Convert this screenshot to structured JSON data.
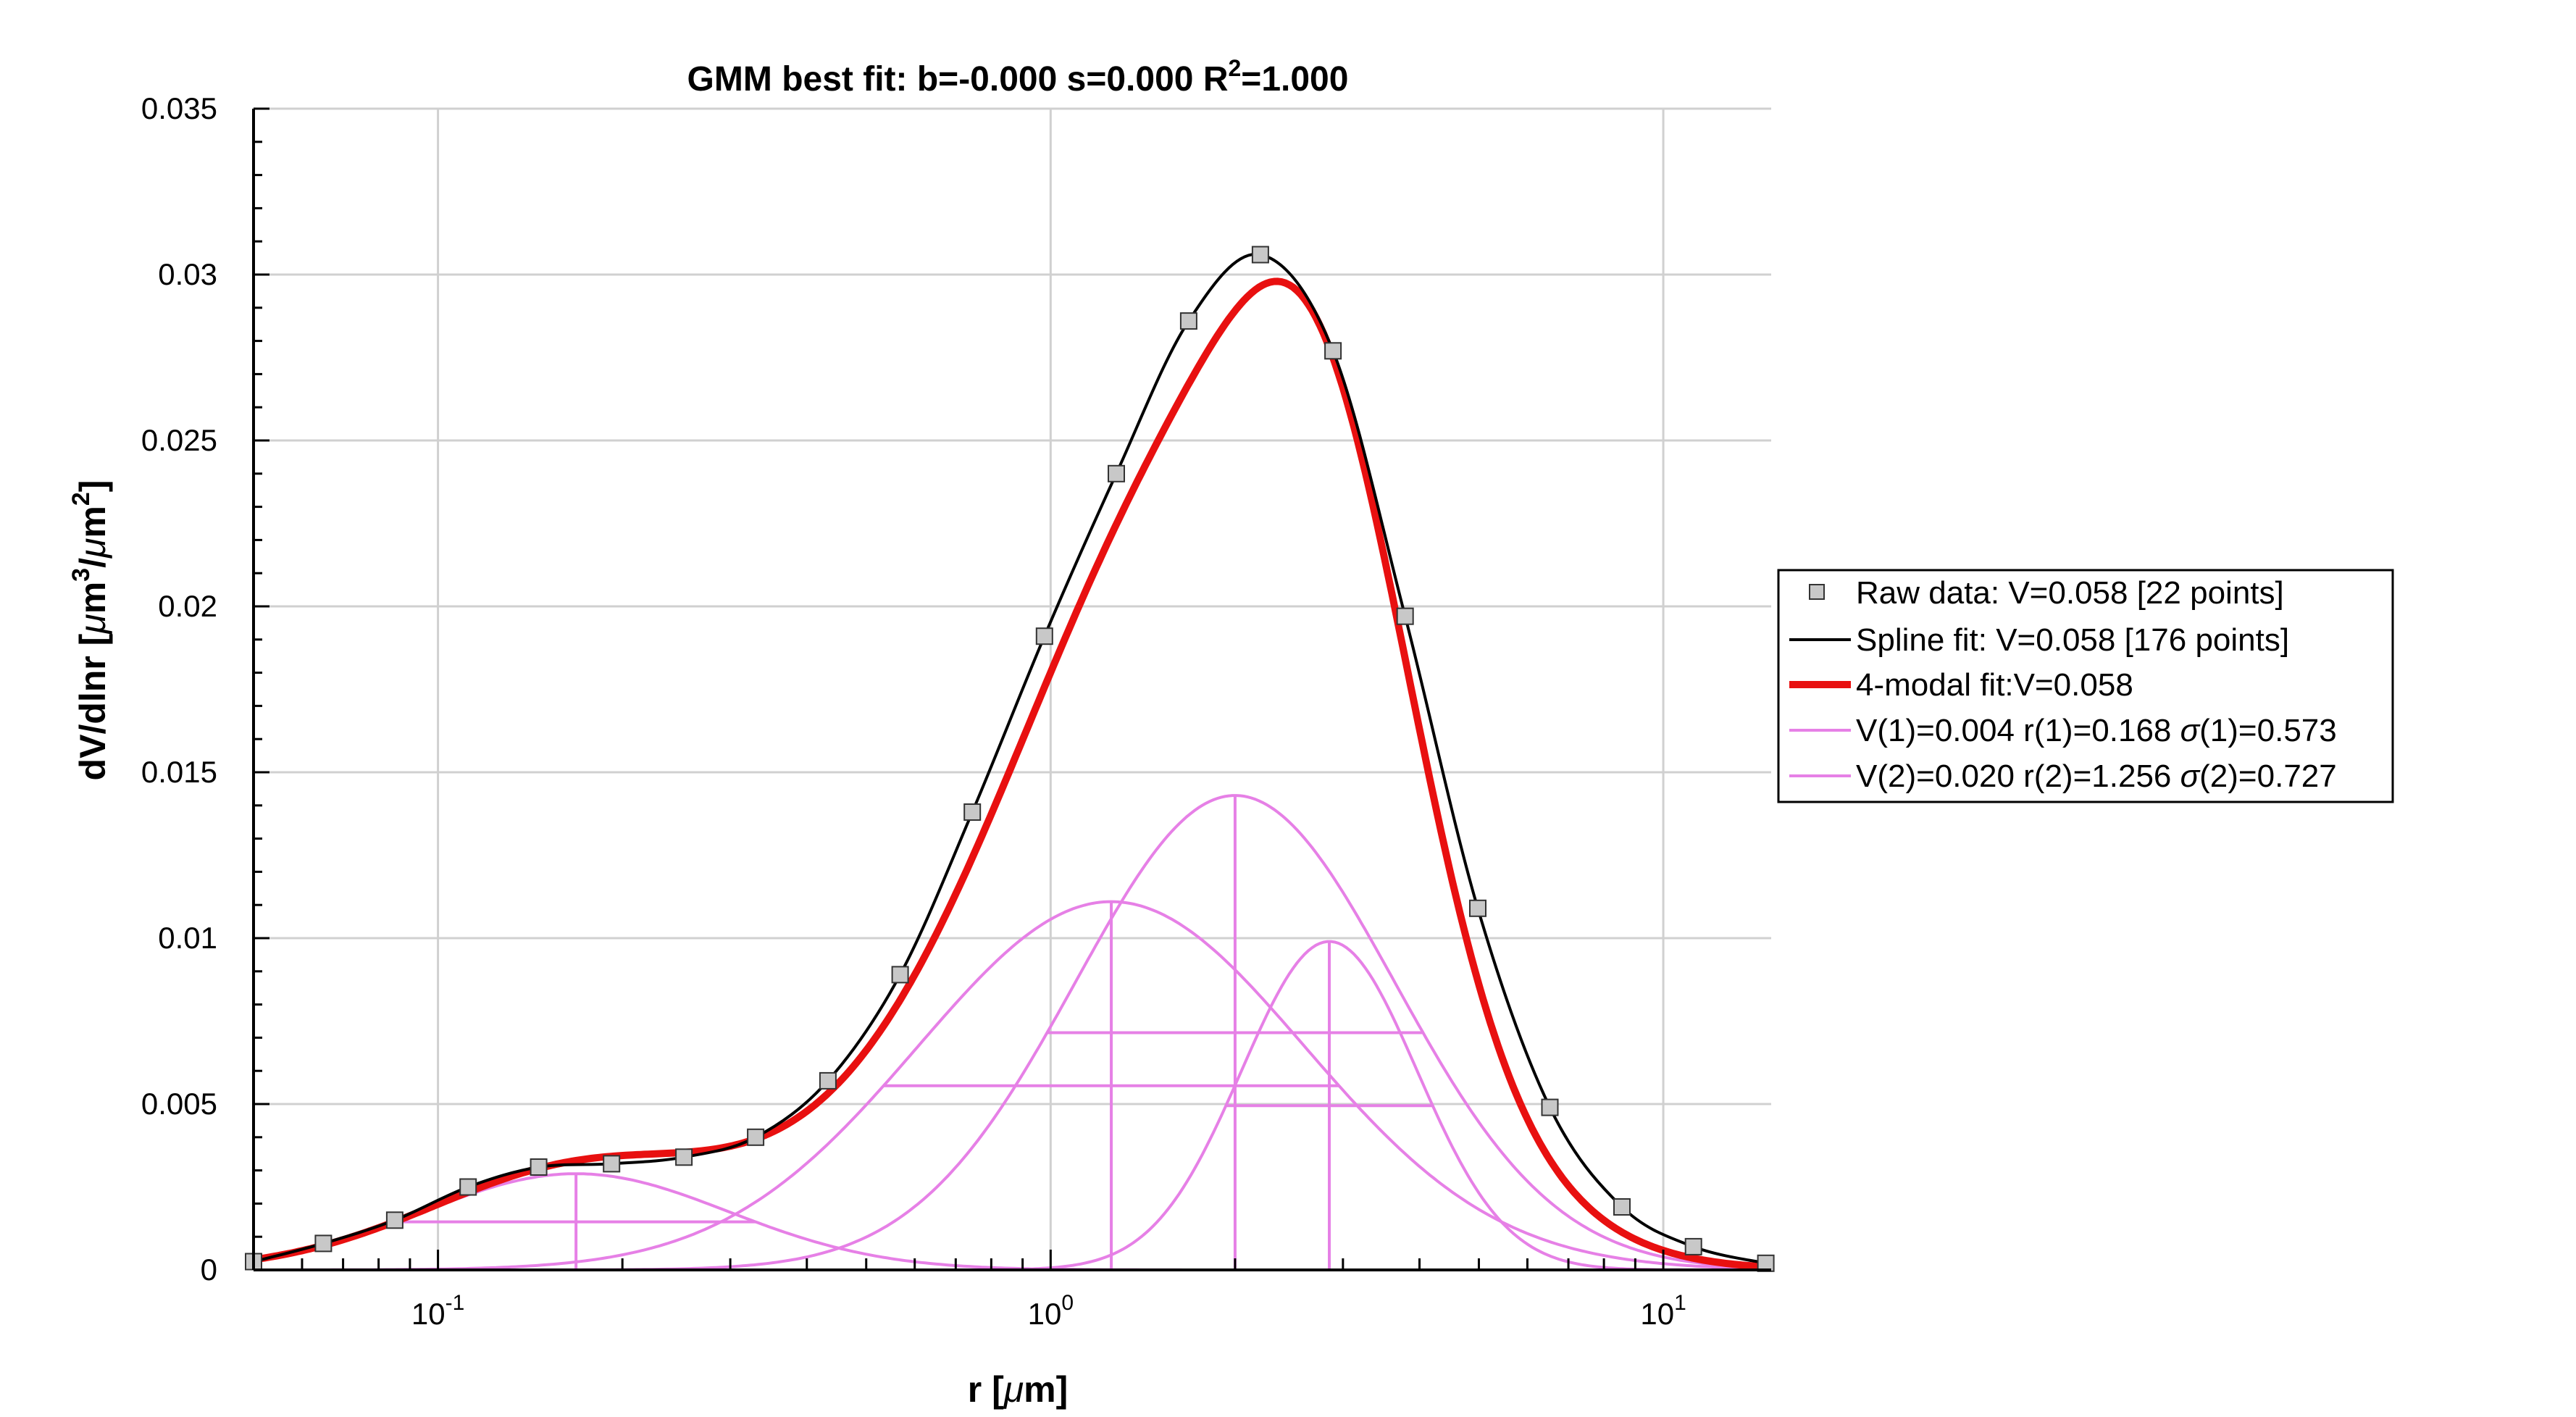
{
  "chart_data": {
    "type": "line",
    "title": "GMM best fit: b=-0.000 s=0.000 R",
    "title_sup": "2",
    "title_tail": "=1.000",
    "xlabel_pre": "r [",
    "xlabel_mu": "μ",
    "xlabel_post": "m]",
    "ylabel_pre": "dV/dlnr [",
    "ylabel_mu1": "μ",
    "ylabel_m1": "m",
    "ylabel_sup1": "3",
    "ylabel_slash": "/",
    "ylabel_mu2": "μ",
    "ylabel_m2": "m",
    "ylabel_sup2": "2",
    "ylabel_close": "]",
    "xscale": "log",
    "xlim": [
      0.05,
      15
    ],
    "ylim": [
      0,
      0.035
    ],
    "grid": true,
    "legend_placement": "right",
    "x_ticks": [
      {
        "value": 0.1,
        "base": "10",
        "exp": "-1"
      },
      {
        "value": 1,
        "base": "10",
        "exp": "0"
      },
      {
        "value": 10,
        "base": "10",
        "exp": "1"
      }
    ],
    "y_ticks": [
      {
        "value": 0,
        "label": "0"
      },
      {
        "value": 0.005,
        "label": "0.005"
      },
      {
        "value": 0.01,
        "label": "0.01"
      },
      {
        "value": 0.015,
        "label": "0.015"
      },
      {
        "value": 0.02,
        "label": "0.02"
      },
      {
        "value": 0.025,
        "label": "0.025"
      },
      {
        "value": 0.03,
        "label": "0.03"
      },
      {
        "value": 0.035,
        "label": "0.035"
      }
    ],
    "raw_data": {
      "name": "Raw data: V=0.058 [22 points]",
      "x": [
        0.05,
        0.065,
        0.085,
        0.112,
        0.146,
        0.192,
        0.252,
        0.33,
        0.433,
        0.568,
        0.745,
        0.977,
        1.28,
        1.68,
        2.2,
        2.89,
        3.79,
        4.98,
        6.53,
        8.56,
        11.2,
        14.7
      ],
      "y": [
        0.00025,
        0.0008,
        0.0015,
        0.0025,
        0.0031,
        0.0032,
        0.0034,
        0.004,
        0.0057,
        0.0089,
        0.0138,
        0.0191,
        0.024,
        0.0286,
        0.0306,
        0.0277,
        0.0197,
        0.0109,
        0.0049,
        0.0019,
        0.0007,
        0.0002
      ]
    },
    "spline_fit": {
      "name": "Spline fit: V=0.058 [176 points]",
      "color": "#000000"
    },
    "multimodal_fit": {
      "name": "4-modal fit:V=0.058",
      "color": "#e81010"
    },
    "mode_color": "#e680e6",
    "legend_modes": [
      {
        "label": "V(1)=0.004 r(1)=0.168 ",
        "sigma": "σ",
        "label_tail": "(1)=0.573"
      },
      {
        "label": "V(2)=0.020 r(2)=1.256 ",
        "sigma": "σ",
        "label_tail": "(2)=0.727"
      }
    ],
    "modes": [
      {
        "peak": 0.0029,
        "r": 0.168,
        "sigma": 0.573
      },
      {
        "peak": 0.0111,
        "r": 1.256,
        "sigma": 0.727
      },
      {
        "peak": 0.0143,
        "r": 2.0,
        "sigma": 0.6
      },
      {
        "peak": 0.0099,
        "r": 2.85,
        "sigma": 0.33
      }
    ]
  }
}
